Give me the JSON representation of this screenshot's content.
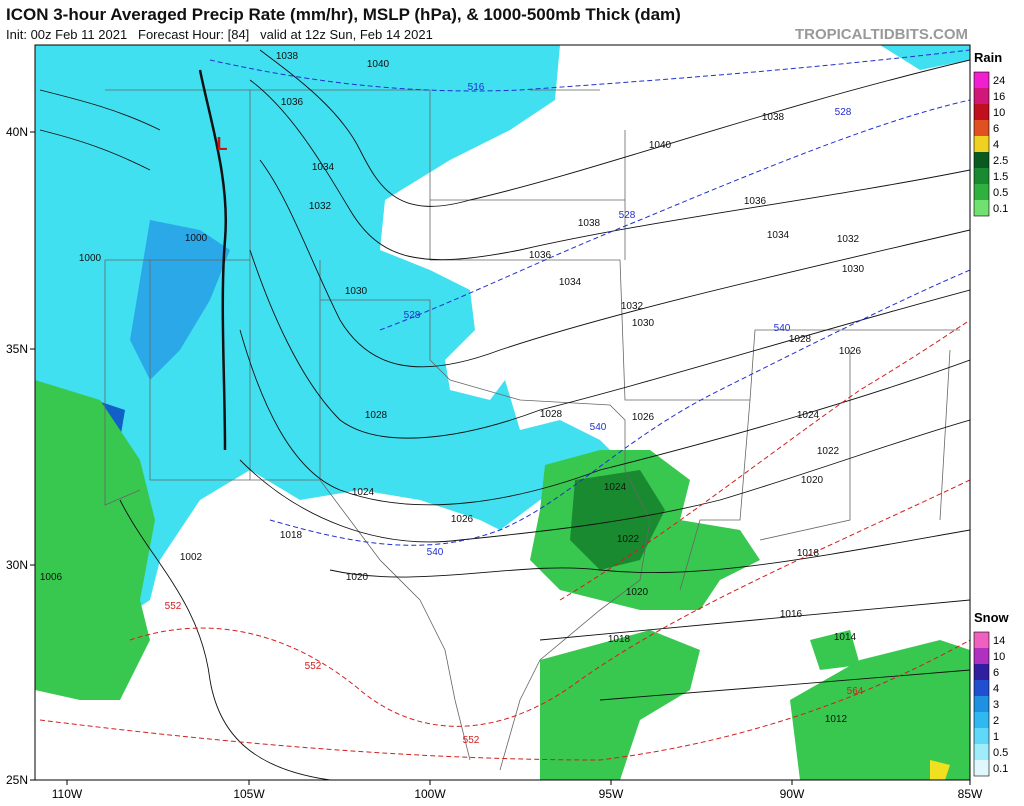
{
  "header": {
    "title": "ICON 3-hour Averaged Precip Rate (mm/hr), MSLP (hPa), & 1000-500mb Thick (dam)",
    "subtitle": "Init: 00z Feb 11 2021   Forecast Hour: [84]   valid at 12z Sun, Feb 14 2021",
    "watermark": "TROPICALTIDBITS.COM"
  },
  "axes": {
    "longitudes": [
      "110W",
      "105W",
      "100W",
      "95W",
      "90W",
      "85W"
    ],
    "latitudes": [
      "40N",
      "35N",
      "30N",
      "25N"
    ]
  },
  "legend": {
    "rain": {
      "title": "Rain",
      "labels": [
        "24",
        "16",
        "10",
        "6",
        "4",
        "2.5",
        "1.5",
        "0.5",
        "0.1"
      ]
    },
    "snow": {
      "title": "Snow",
      "labels": [
        "14",
        "10",
        "6",
        "4",
        "3",
        "2",
        "1",
        "0.5",
        "0.1"
      ]
    }
  },
  "map": {
    "low_label": "L",
    "isobar_labels": [
      "1038",
      "1040",
      "1036",
      "1034",
      "1032",
      "1030",
      "1028",
      "1026",
      "1024",
      "1024",
      "1022",
      "1020",
      "1018",
      "1016",
      "1014",
      "1012",
      "1038",
      "1040",
      "1036",
      "1034",
      "1032",
      "1030",
      "1028",
      "1026",
      "1024",
      "1022",
      "1020",
      "1018",
      "1038",
      "1036",
      "1034",
      "1032",
      "1030",
      "1028",
      "1026",
      "1020",
      "1018",
      "1006",
      "1002",
      "1000",
      "1000"
    ],
    "thickness_labels": [
      "516",
      "528",
      "528",
      "528",
      "540",
      "540",
      "540",
      "552",
      "552",
      "552",
      "564"
    ]
  }
}
